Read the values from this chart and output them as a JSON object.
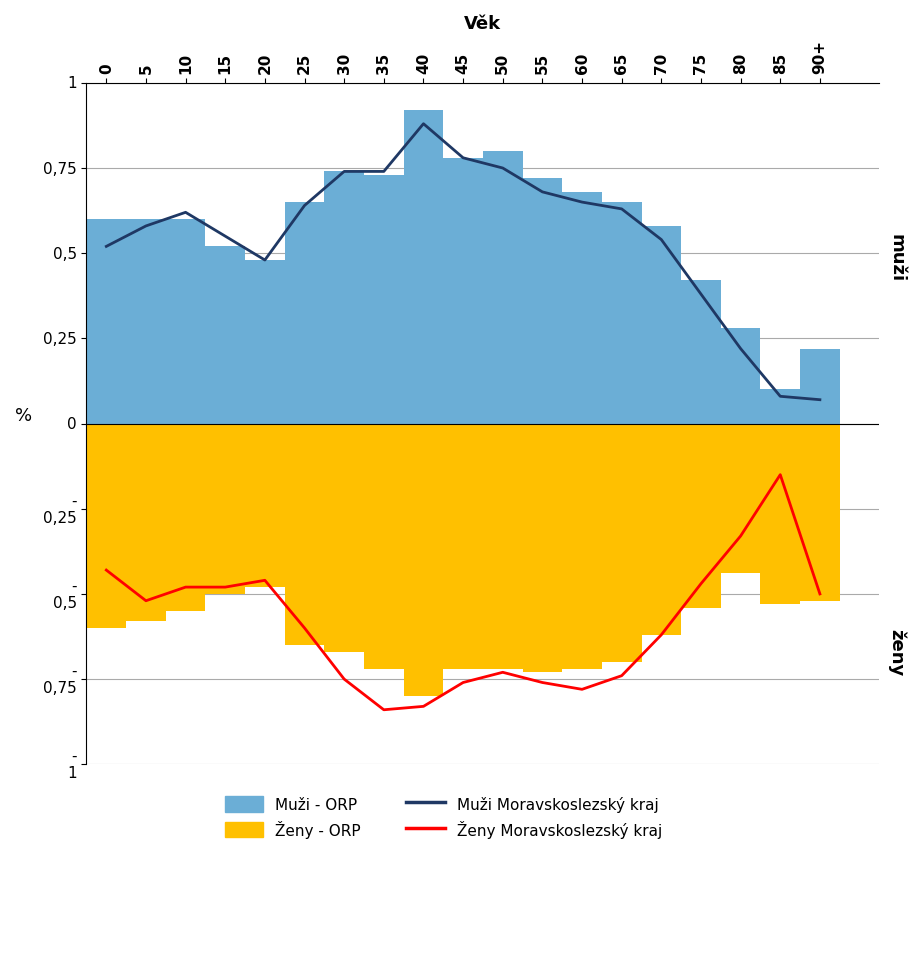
{
  "title": "Věk",
  "ylabel": "%",
  "xlim": [
    -0.5,
    19.5
  ],
  "ylim": [
    -1.0,
    1.0
  ],
  "yticks": [
    -1.0,
    -0.75,
    -0.5,
    -0.25,
    0.0,
    0.25,
    0.5,
    0.75,
    1.0
  ],
  "age_labels": [
    "0",
    "5",
    "10",
    "15",
    "20",
    "25",
    "30",
    "35",
    "40",
    "45",
    "50",
    "55",
    "60",
    "65",
    "70",
    "75",
    "80",
    "85",
    "90+"
  ],
  "n_ages": 19,
  "bar_width": 1.0,
  "male_orp": [
    0.6,
    0.6,
    0.6,
    0.52,
    0.48,
    0.65,
    0.74,
    0.73,
    0.92,
    0.78,
    0.8,
    0.72,
    0.68,
    0.65,
    0.58,
    0.42,
    0.28,
    0.1,
    0.22
  ],
  "female_orp": [
    -0.6,
    -0.58,
    -0.55,
    -0.5,
    -0.48,
    -0.65,
    -0.67,
    -0.72,
    -0.8,
    -0.72,
    -0.72,
    -0.73,
    -0.72,
    -0.7,
    -0.62,
    -0.54,
    -0.44,
    -0.53,
    -0.52
  ],
  "male_kraj": [
    0.52,
    0.58,
    0.62,
    0.55,
    0.48,
    0.64,
    0.74,
    0.74,
    0.88,
    0.78,
    0.75,
    0.68,
    0.65,
    0.63,
    0.54,
    0.38,
    0.22,
    0.08,
    0.07
  ],
  "female_kraj": [
    -0.43,
    -0.52,
    -0.48,
    -0.48,
    -0.46,
    -0.6,
    -0.75,
    -0.84,
    -0.83,
    -0.76,
    -0.73,
    -0.76,
    -0.78,
    -0.74,
    -0.62,
    -0.47,
    -0.33,
    -0.15,
    -0.5
  ],
  "male_bar_color": "#6BAED6",
  "female_bar_color": "#FFC000",
  "male_line_color": "#1F3864",
  "female_line_color": "#FF0000",
  "label_muzi_orp": "Muži - ORP",
  "label_zeny_orp": "Ženy - ORP",
  "label_muzi_kraj": "Muži Moravskoslezský kraj",
  "label_zeny_kraj": "Ženy Moravskoslezský kraj",
  "label_muzi": "muži",
  "label_zeny": "ženy",
  "grid_color": "#AAAAAA"
}
